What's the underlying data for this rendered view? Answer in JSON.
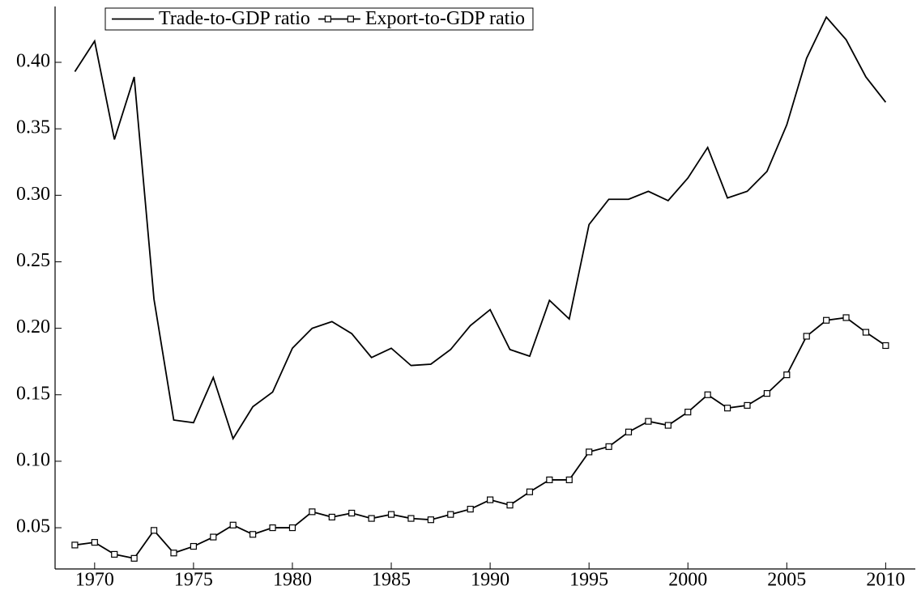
{
  "chart_data": {
    "type": "line",
    "x": [
      1969,
      1970,
      1971,
      1972,
      1973,
      1974,
      1975,
      1976,
      1977,
      1978,
      1979,
      1980,
      1981,
      1982,
      1983,
      1984,
      1985,
      1986,
      1987,
      1988,
      1989,
      1990,
      1991,
      1992,
      1993,
      1994,
      1995,
      1996,
      1997,
      1998,
      1999,
      2000,
      2001,
      2002,
      2003,
      2004,
      2005,
      2006,
      2007,
      2008,
      2009,
      2010
    ],
    "series": [
      {
        "name": "Trade-to-GDP ratio",
        "color": "#000000",
        "marker": "none",
        "values": [
          0.393,
          0.416,
          0.342,
          0.389,
          0.222,
          0.131,
          0.129,
          0.163,
          0.117,
          0.141,
          0.152,
          0.185,
          0.2,
          0.205,
          0.196,
          0.178,
          0.185,
          0.172,
          0.173,
          0.184,
          0.202,
          0.214,
          0.184,
          0.179,
          0.221,
          0.207,
          0.278,
          0.297,
          0.297,
          0.303,
          0.296,
          0.313,
          0.336,
          0.298,
          0.303,
          0.318,
          0.353,
          0.403,
          0.434,
          0.417,
          0.389,
          0.37
        ]
      },
      {
        "name": "Export-to-GDP ratio",
        "color": "#000000",
        "marker": "square",
        "values": [
          0.037,
          0.039,
          0.03,
          0.027,
          0.048,
          0.031,
          0.036,
          0.043,
          0.052,
          0.045,
          0.05,
          0.05,
          0.062,
          0.058,
          0.061,
          0.057,
          0.06,
          0.057,
          0.056,
          0.06,
          0.064,
          0.071,
          0.067,
          0.077,
          0.086,
          0.086,
          0.107,
          0.111,
          0.122,
          0.13,
          0.127,
          0.137,
          0.15,
          0.14,
          0.142,
          0.151,
          0.165,
          0.194,
          0.206,
          0.208,
          0.197,
          0.187
        ]
      }
    ],
    "xlim": [
      1968,
      2011.5
    ],
    "xticks": [
      1970,
      1975,
      1980,
      1985,
      1990,
      1995,
      2000,
      2005,
      2010
    ],
    "ylim": [
      0.019,
      0.442
    ],
    "yticks": [
      0.05,
      {
        "value": 0.1,
        "label": "0.10"
      },
      0.15,
      {
        "value": 0.2,
        "label": "0.20"
      },
      0.25,
      {
        "value": 0.3,
        "label": "0.30"
      },
      0.35,
      {
        "value": 0.4,
        "label": "0.40"
      }
    ],
    "grid": false,
    "legend": "upper left"
  }
}
